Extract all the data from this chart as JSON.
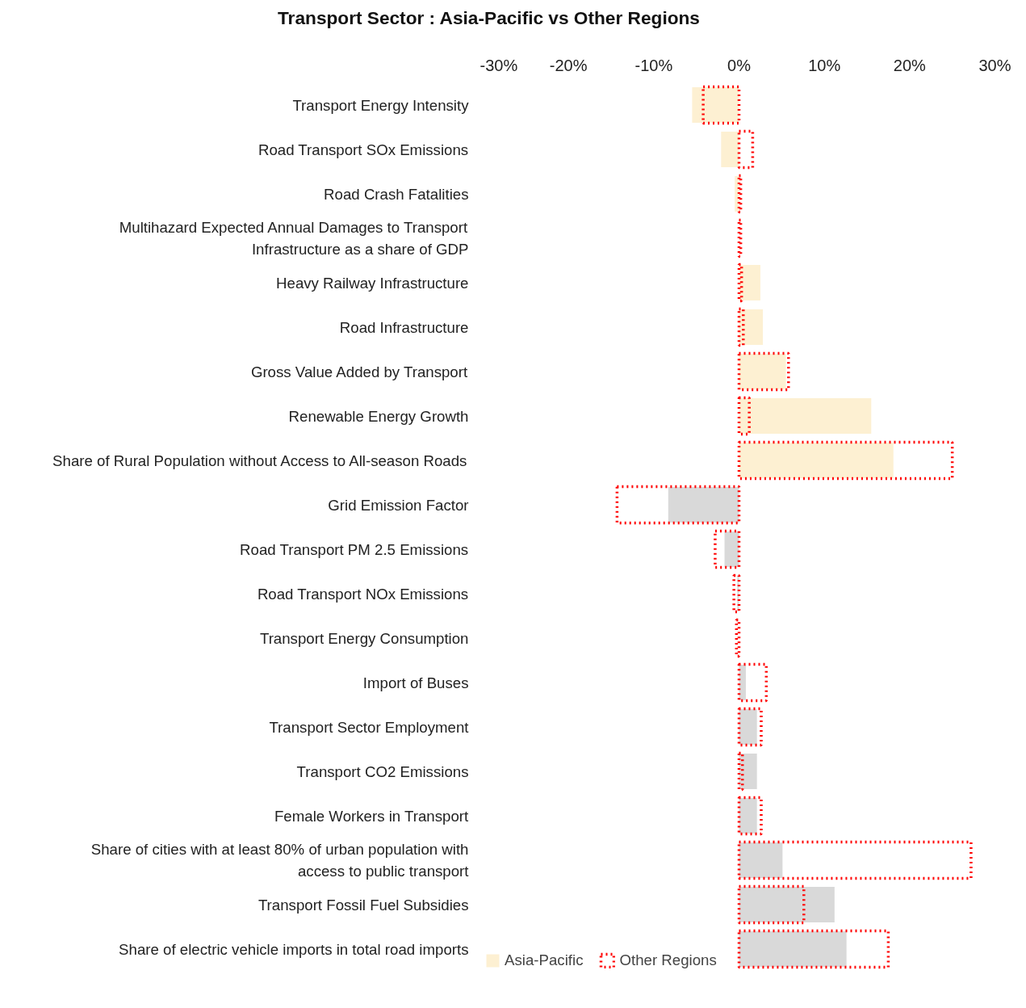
{
  "chart_data": {
    "type": "bar",
    "orientation": "horizontal",
    "title": "Transport Sector :  Asia-Pacific vs Other Regions",
    "categories": [
      "Transport Energy Intensity",
      "Road Transport SOx Emissions",
      "Road Crash Fatalities",
      "Multihazard Expected Annual Damages to Transport Infrastructure as a share of GDP",
      "Heavy Railway Infrastructure",
      "Road Infrastructure",
      "Gross Value Added by Transport",
      "Renewable Energy Growth",
      "Share of Rural Population without Access to All-season Roads",
      "Grid Emission Factor",
      "Road Transport PM 2.5 Emissions",
      "Road Transport NOx Emissions",
      "Transport Energy Consumption",
      "Import of Buses",
      "Transport Sector Employment",
      "Transport CO2 Emissions",
      "Female Workers in Transport",
      "Share of cities with at least 80% of urban population with access to public transport",
      "Transport Fossil Fuel Subsidies",
      "Share of electric vehicle imports in total road imports"
    ],
    "series": [
      {
        "name": "Asia-Pacific",
        "colors": [
          "#fdf0d2",
          "#fdf0d2",
          "#fdf0d2",
          "#fdf0d2",
          "#fdf0d2",
          "#fdf0d2",
          "#fdf0d2",
          "#fdf0d2",
          "#fdf0d2",
          "#d9d9d9",
          "#d9d9d9",
          "#d9d9d9",
          "#d9d9d9",
          "#d9d9d9",
          "#d9d9d9",
          "#d9d9d9",
          "#d9d9d9",
          "#d9d9d9",
          "#d9d9d9",
          "#d9d9d9"
        ],
        "values": [
          -5.5,
          -2.1,
          -0.5,
          0,
          2.5,
          2.8,
          5.5,
          15.5,
          18.1,
          -8.3,
          -1.7,
          -0.2,
          0,
          0.8,
          2.1,
          2.1,
          2.1,
          5.1,
          11.2,
          12.6
        ]
      },
      {
        "name": "Other Regions",
        "color": "#ff0000",
        "line_style": "dotted",
        "values": [
          -4.2,
          1.6,
          0.2,
          0.2,
          0.3,
          0.5,
          5.8,
          1.2,
          25.0,
          -14.3,
          -2.8,
          -0.6,
          -0.3,
          3.2,
          2.6,
          0.4,
          2.6,
          27.2,
          7.6,
          17.5
        ]
      }
    ],
    "xlim": [
      -30,
      30
    ],
    "xticks": [
      {
        "value": -30,
        "label": "-30%"
      },
      {
        "value": -20,
        "label": "-20%"
      },
      {
        "value": -10,
        "label": "-10%"
      },
      {
        "value": 0,
        "label": "0%"
      },
      {
        "value": 10,
        "label": "10%"
      },
      {
        "value": 20,
        "label": "20%"
      },
      {
        "value": 30,
        "label": "30%"
      }
    ],
    "grid": false,
    "legend": "bottom"
  }
}
